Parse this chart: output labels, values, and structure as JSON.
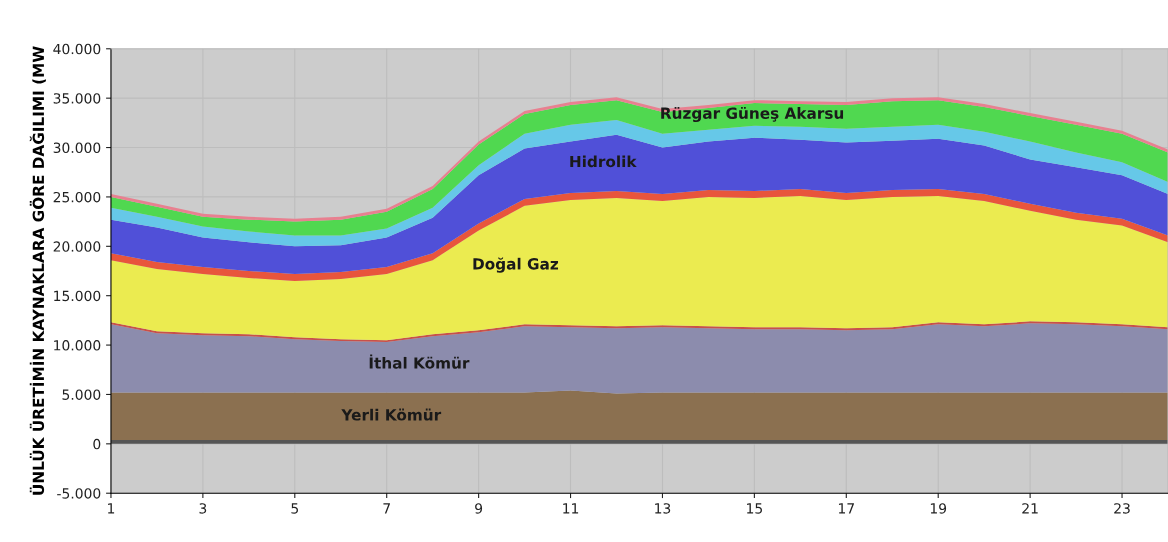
{
  "chart_data": {
    "type": "area",
    "stacked": true,
    "ylabel": "ÜNLÜK ÜRETİMİN KAYNAKLARA GÖRE DAĞILIMI (MW",
    "x": [
      1,
      2,
      3,
      4,
      5,
      6,
      7,
      8,
      9,
      10,
      11,
      12,
      13,
      14,
      15,
      16,
      17,
      18,
      19,
      20,
      21,
      22,
      23,
      24
    ],
    "xlim": [
      1,
      24
    ],
    "xticks": [
      1,
      3,
      5,
      7,
      9,
      11,
      13,
      15,
      17,
      19,
      21,
      23
    ],
    "ylim": [
      -5000,
      40000
    ],
    "yticks": [
      {
        "value": -5000,
        "label": "-5.000"
      },
      0,
      {
        "value": 5000,
        "label": "5.000"
      },
      {
        "value": 10000,
        "label": "10.000"
      },
      {
        "value": 15000,
        "label": "15.000"
      },
      {
        "value": 20000,
        "label": "20.000"
      },
      {
        "value": 25000,
        "label": "25.000"
      },
      {
        "value": 30000,
        "label": "30.000"
      },
      {
        "value": 35000,
        "label": "35.000"
      },
      {
        "value": 40000,
        "label": "40.000"
      }
    ],
    "grid": true,
    "legend": false,
    "series": [
      {
        "color": "#555555",
        "values": [
          400,
          400,
          400,
          400,
          400,
          400,
          400,
          400,
          400,
          400,
          400,
          400,
          400,
          400,
          400,
          400,
          400,
          400,
          400,
          400,
          400,
          400,
          400,
          400
        ]
      },
      {
        "name": "Yerli Kömür",
        "color": "#8b7050",
        "values": [
          4800,
          4800,
          4800,
          4800,
          4800,
          4800,
          4800,
          4800,
          4800,
          4800,
          5000,
          4700,
          4800,
          4800,
          4800,
          4800,
          4800,
          4800,
          4800,
          4800,
          4800,
          4800,
          4800,
          4800
        ]
      },
      {
        "name": "İthal Kömür",
        "color": "#8c8cad",
        "values": [
          6900,
          6000,
          5800,
          5700,
          5400,
          5200,
          5100,
          5700,
          6100,
          6700,
          6400,
          6600,
          6600,
          6500,
          6400,
          6400,
          6300,
          6400,
          6900,
          6700,
          7000,
          6900,
          6700,
          6400
        ]
      },
      {
        "color": "#c8504a",
        "values": [
          200,
          200,
          200,
          200,
          200,
          200,
          200,
          200,
          200,
          200,
          200,
          200,
          200,
          200,
          200,
          200,
          200,
          200,
          200,
          200,
          200,
          200,
          200,
          200
        ]
      },
      {
        "name": "Doğal Gaz",
        "color": "#ebeb50",
        "values": [
          6300,
          6300,
          6000,
          5700,
          5700,
          6100,
          6700,
          7500,
          10100,
          12000,
          12700,
          13000,
          12600,
          13100,
          13100,
          13300,
          13000,
          13200,
          12800,
          12500,
          11200,
          10400,
          10000,
          8600
        ]
      },
      {
        "color": "#e8553c",
        "values": [
          700,
          700,
          700,
          700,
          700,
          700,
          700,
          700,
          700,
          700,
          700,
          700,
          700,
          700,
          700,
          700,
          700,
          700,
          700,
          700,
          700,
          700,
          700,
          700
        ]
      },
      {
        "name": "Hidrolik",
        "color": "#5050d8",
        "values": [
          3400,
          3500,
          3000,
          2900,
          2800,
          2700,
          3000,
          3600,
          4900,
          5100,
          5200,
          5700,
          4700,
          4900,
          5400,
          5000,
          5100,
          5000,
          5100,
          4900,
          4500,
          4600,
          4400,
          4200
        ]
      },
      {
        "color": "#66c8e8",
        "values": [
          1200,
          1100,
          1100,
          1100,
          1100,
          1000,
          900,
          1000,
          1000,
          1500,
          1700,
          1500,
          1400,
          1200,
          1200,
          1300,
          1400,
          1400,
          1400,
          1400,
          1800,
          1500,
          1300,
          1200
        ]
      },
      {
        "name": "Rüzgar Güneş Akarsu",
        "color": "#50d850",
        "values": [
          1100,
          1000,
          1000,
          1200,
          1400,
          1600,
          1700,
          1900,
          2100,
          2000,
          2000,
          2000,
          2200,
          2200,
          2300,
          2300,
          2400,
          2600,
          2500,
          2500,
          2600,
          2800,
          2900,
          3000
        ]
      },
      {
        "color": "#e88090",
        "values": [
          300,
          300,
          300,
          300,
          300,
          300,
          300,
          300,
          300,
          300,
          300,
          300,
          300,
          300,
          300,
          300,
          300,
          300,
          300,
          300,
          300,
          300,
          300,
          300
        ]
      }
    ]
  }
}
